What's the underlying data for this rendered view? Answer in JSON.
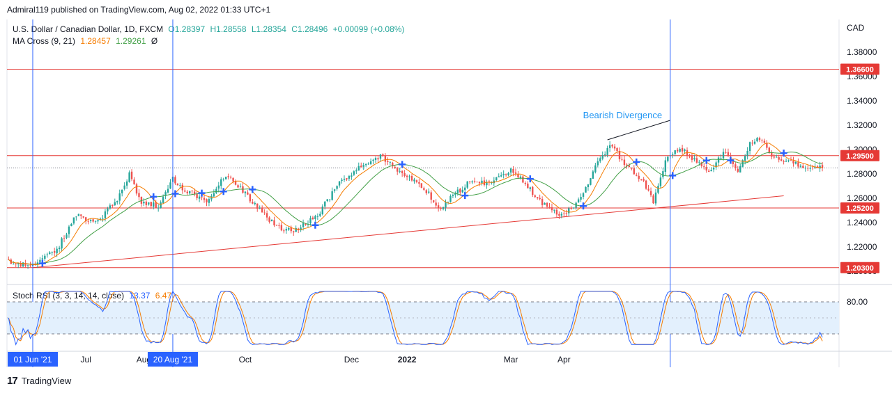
{
  "header": {
    "attribution": "Admiral119 published on TradingView.com, Aug 02, 2022 01:33 UTC+1"
  },
  "legend": {
    "symbol": "U.S. Dollar / Canadian Dollar, 1D, FXCM",
    "open": "O1.28397",
    "high": "H1.28558",
    "low": "L1.28354",
    "close": "C1.28496",
    "change": "+0.00099 (+0.08%)",
    "ma_label": "MA Cross (9, 21)",
    "ma_fast": "1.28457",
    "ma_slow": "1.29261",
    "ma_extra": "Ø",
    "stoch_label": "Stoch RSI (3, 3, 14, 14, close)",
    "stoch_k": "13.37",
    "stoch_d": "6.47"
  },
  "footer": {
    "logo_text": "TradingView"
  },
  "colors": {
    "up": "#26a69a",
    "down": "#ef5350",
    "ma_fast": "#f57c00",
    "ma_slow": "#43a047",
    "level": "#e53935",
    "vline": "#2962ff",
    "stoch_k": "#2962ff",
    "stoch_d": "#f57c00",
    "cross_marker": "#2962ff",
    "annotation": "#2196f3"
  },
  "chart_data": [
    {
      "type": "candlestick",
      "title": "U.S. Dollar / Canadian Dollar, 1D, FXCM",
      "price_axis_label": "CAD",
      "price_ticks": [
        "1.38000",
        "1.36000",
        "1.34000",
        "1.32000",
        "1.30000",
        "1.28000",
        "1.26000",
        "1.24000",
        "1.22000",
        "1.20000"
      ],
      "ylim": [
        1.193,
        1.41
      ],
      "time_ticks": [
        "01 Jun '21",
        "Jul",
        "Aug",
        "20 Aug '21",
        "Oct",
        "Dec",
        "2022",
        "Mar",
        "Apr"
      ],
      "time_tick_positions": [
        0,
        22,
        46,
        58,
        88,
        132,
        155,
        198,
        220
      ],
      "highlighted_time_ticks": [
        "01 Jun '21",
        "20 Aug '21"
      ],
      "horizontal_levels": [
        {
          "value": 1.366,
          "label": "1.36600"
        },
        {
          "value": 1.295,
          "label": "1.29500"
        },
        {
          "value": 1.252,
          "label": "1.25200"
        },
        {
          "value": 1.203,
          "label": "1.20300"
        }
      ],
      "vertical_markers": [
        0,
        58,
        264
      ],
      "trendline": {
        "from": [
          0,
          1.203
        ],
        "to": [
          311,
          1.262
        ]
      },
      "divergence_line": {
        "from": [
          238,
          1.308
        ],
        "to": [
          264,
          1.324
        ]
      },
      "annotations": [
        "Bearish Divergence"
      ],
      "last_close": 1.28496,
      "anchors": [
        [
          -10,
          1.208
        ],
        [
          -2,
          1.205
        ],
        [
          3,
          1.209
        ],
        [
          10,
          1.218
        ],
        [
          18,
          1.246
        ],
        [
          27,
          1.24
        ],
        [
          35,
          1.259
        ],
        [
          40,
          1.28
        ],
        [
          45,
          1.256
        ],
        [
          52,
          1.254
        ],
        [
          58,
          1.276
        ],
        [
          62,
          1.268
        ],
        [
          72,
          1.258
        ],
        [
          80,
          1.279
        ],
        [
          86,
          1.268
        ],
        [
          92,
          1.255
        ],
        [
          100,
          1.238
        ],
        [
          108,
          1.232
        ],
        [
          118,
          1.246
        ],
        [
          126,
          1.27
        ],
        [
          134,
          1.283
        ],
        [
          144,
          1.295
        ],
        [
          150,
          1.285
        ],
        [
          156,
          1.278
        ],
        [
          164,
          1.264
        ],
        [
          168,
          1.25
        ],
        [
          174,
          1.262
        ],
        [
          182,
          1.275
        ],
        [
          190,
          1.272
        ],
        [
          198,
          1.284
        ],
        [
          202,
          1.277
        ],
        [
          208,
          1.262
        ],
        [
          214,
          1.25
        ],
        [
          220,
          1.246
        ],
        [
          228,
          1.263
        ],
        [
          233,
          1.288
        ],
        [
          240,
          1.304
        ],
        [
          244,
          1.291
        ],
        [
          248,
          1.283
        ],
        [
          253,
          1.273
        ],
        [
          257,
          1.258
        ],
        [
          262,
          1.29
        ],
        [
          268,
          1.302
        ],
        [
          274,
          1.291
        ],
        [
          280,
          1.282
        ],
        [
          287,
          1.299
        ],
        [
          292,
          1.282
        ],
        [
          297,
          1.305
        ],
        [
          302,
          1.309
        ],
        [
          307,
          1.292
        ],
        [
          313,
          1.291
        ],
        [
          320,
          1.284
        ],
        [
          327,
          1.285
        ]
      ],
      "series": [
        {
          "name": "MA Cross fast (9)",
          "last": 1.28457
        },
        {
          "name": "MA Cross slow (21)",
          "last": 1.29261
        }
      ]
    },
    {
      "type": "line",
      "title": "Stoch RSI (3, 3, 14, 14, close)",
      "ylim": [
        0,
        100
      ],
      "band": [
        20,
        80
      ],
      "ticks": [
        "80.00"
      ],
      "series": [
        {
          "name": "K",
          "last": 13.37
        },
        {
          "name": "D",
          "last": 6.47
        }
      ]
    }
  ]
}
